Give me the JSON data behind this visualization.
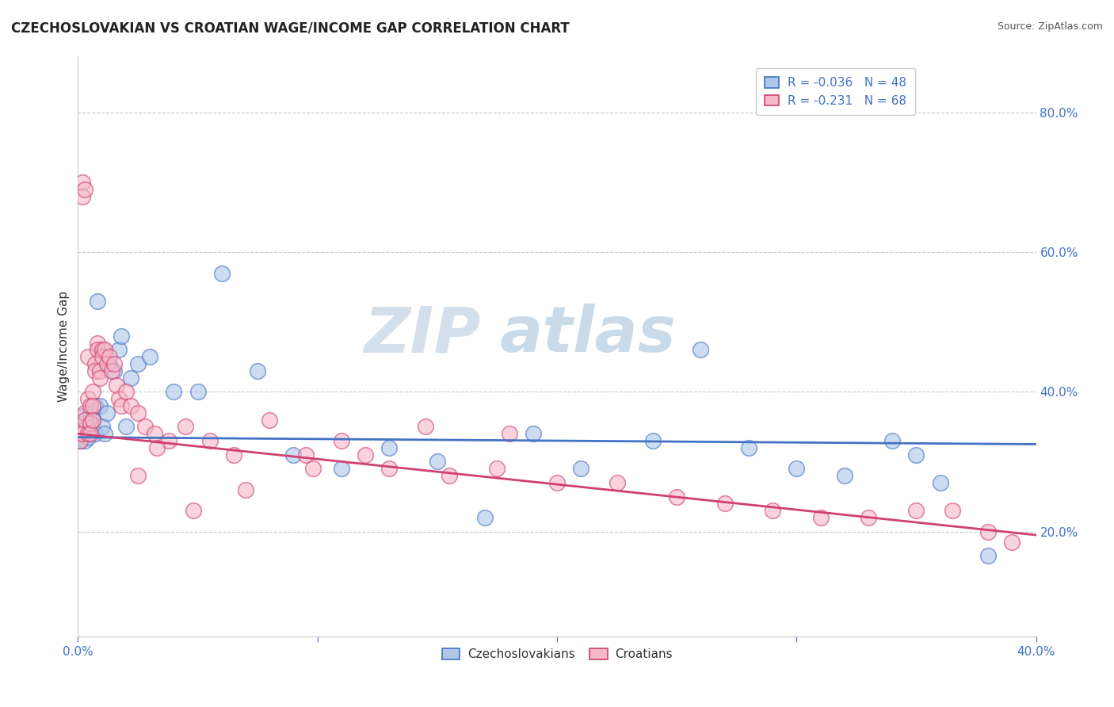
{
  "title": "CZECHOSLOVAKIAN VS CROATIAN WAGE/INCOME GAP CORRELATION CHART",
  "source": "Source: ZipAtlas.com",
  "ylabel": "Wage/Income Gap",
  "y_ticks": [
    0.2,
    0.4,
    0.6,
    0.8
  ],
  "y_tick_labels": [
    "20.0%",
    "40.0%",
    "60.0%",
    "80.0%"
  ],
  "x_range": [
    0.0,
    0.4
  ],
  "y_range": [
    0.05,
    0.88
  ],
  "legend_r1": "-0.036",
  "legend_n1": "48",
  "legend_r2": "-0.231",
  "legend_n2": "68",
  "color_czech": "#aec6e8",
  "color_croatian": "#f5b8c8",
  "line_color_czech": "#4472c4",
  "line_color_croatian": "#d04070",
  "watermark_zip": "ZIP",
  "watermark_atlas": "atlas",
  "czech_x": [
    0.001,
    0.001,
    0.002,
    0.002,
    0.002,
    0.003,
    0.003,
    0.004,
    0.004,
    0.005,
    0.005,
    0.006,
    0.006,
    0.007,
    0.007,
    0.008,
    0.009,
    0.01,
    0.011,
    0.012,
    0.013,
    0.015,
    0.017,
    0.018,
    0.02,
    0.022,
    0.025,
    0.03,
    0.04,
    0.05,
    0.06,
    0.075,
    0.09,
    0.11,
    0.13,
    0.15,
    0.17,
    0.19,
    0.21,
    0.24,
    0.26,
    0.28,
    0.3,
    0.32,
    0.34,
    0.35,
    0.36,
    0.38
  ],
  "czech_y": [
    0.345,
    0.33,
    0.355,
    0.365,
    0.34,
    0.33,
    0.35,
    0.34,
    0.335,
    0.37,
    0.36,
    0.345,
    0.36,
    0.38,
    0.34,
    0.53,
    0.38,
    0.35,
    0.34,
    0.37,
    0.44,
    0.43,
    0.46,
    0.48,
    0.35,
    0.42,
    0.44,
    0.45,
    0.4,
    0.4,
    0.57,
    0.43,
    0.31,
    0.29,
    0.32,
    0.3,
    0.22,
    0.34,
    0.29,
    0.33,
    0.46,
    0.32,
    0.29,
    0.28,
    0.33,
    0.31,
    0.27,
    0.165
  ],
  "croatian_x": [
    0.001,
    0.001,
    0.001,
    0.002,
    0.002,
    0.002,
    0.003,
    0.003,
    0.003,
    0.004,
    0.004,
    0.004,
    0.005,
    0.005,
    0.005,
    0.006,
    0.006,
    0.006,
    0.007,
    0.007,
    0.008,
    0.008,
    0.009,
    0.009,
    0.01,
    0.01,
    0.011,
    0.012,
    0.013,
    0.014,
    0.015,
    0.016,
    0.017,
    0.018,
    0.02,
    0.022,
    0.025,
    0.028,
    0.032,
    0.038,
    0.045,
    0.055,
    0.065,
    0.08,
    0.095,
    0.11,
    0.13,
    0.155,
    0.175,
    0.2,
    0.225,
    0.25,
    0.27,
    0.29,
    0.31,
    0.33,
    0.35,
    0.365,
    0.38,
    0.39,
    0.18,
    0.145,
    0.12,
    0.098,
    0.07,
    0.048,
    0.033,
    0.025
  ],
  "croatian_y": [
    0.34,
    0.35,
    0.33,
    0.7,
    0.68,
    0.34,
    0.37,
    0.36,
    0.69,
    0.45,
    0.39,
    0.34,
    0.38,
    0.355,
    0.34,
    0.4,
    0.38,
    0.36,
    0.44,
    0.43,
    0.47,
    0.46,
    0.43,
    0.42,
    0.46,
    0.45,
    0.46,
    0.44,
    0.45,
    0.43,
    0.44,
    0.41,
    0.39,
    0.38,
    0.4,
    0.38,
    0.37,
    0.35,
    0.34,
    0.33,
    0.35,
    0.33,
    0.31,
    0.36,
    0.31,
    0.33,
    0.29,
    0.28,
    0.29,
    0.27,
    0.27,
    0.25,
    0.24,
    0.23,
    0.22,
    0.22,
    0.23,
    0.23,
    0.2,
    0.185,
    0.34,
    0.35,
    0.31,
    0.29,
    0.26,
    0.23,
    0.32,
    0.28
  ]
}
